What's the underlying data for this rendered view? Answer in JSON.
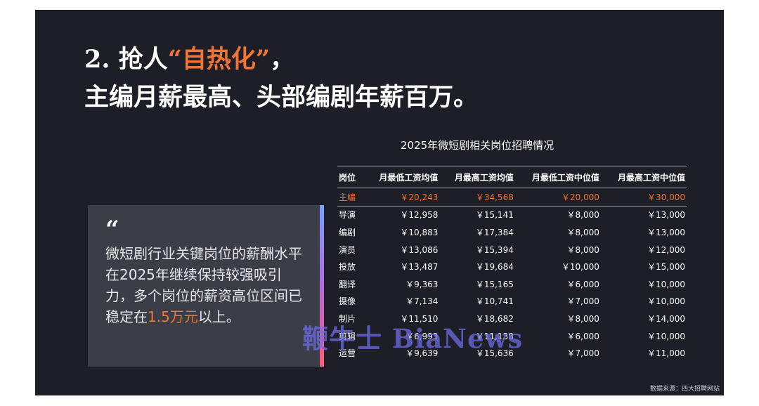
{
  "headline": {
    "line1_prefix": "2. 抢人",
    "line1_accent": "“自热化”",
    "line1_suffix": "，",
    "line2": "主编月薪最高、头部编剧年薪百万。"
  },
  "quote": {
    "mark": "“",
    "text_before": "微短剧行业关键岗位的薪酬水平在2025年继续保持较强吸引力，多个岗位的薪资高位区间已稳定在",
    "highlight": "1.5万元",
    "text_after": "以上。"
  },
  "table": {
    "title": "2025年微短剧相关岗位招聘情况",
    "headers": [
      "岗位",
      "月最低工资均值",
      "月最高工资均值",
      "月最低工资中位值",
      "月最高工资中位值"
    ],
    "rows": [
      [
        "主编",
        "￥20,243",
        "￥34,568",
        "￥20,000",
        "￥30,000"
      ],
      [
        "导演",
        "￥12,958",
        "￥15,141",
        "￥8,000",
        "￥13,000"
      ],
      [
        "编剧",
        "￥10,883",
        "￥17,384",
        "￥8,000",
        "￥13,000"
      ],
      [
        "演员",
        "￥13,086",
        "￥15,394",
        "￥8,000",
        "￥12,000"
      ],
      [
        "投放",
        "￥13,487",
        "￥19,684",
        "￥10,000",
        "￥15,000"
      ],
      [
        "翻译",
        "￥9,363",
        "￥15,165",
        "￥6,000",
        "￥10,000"
      ],
      [
        "摄像",
        "￥7,134",
        "￥10,741",
        "￥7,000",
        "￥10,000"
      ],
      [
        "制片",
        "￥11,510",
        "￥18,682",
        "￥8,000",
        "￥14,000"
      ],
      [
        "剪辑",
        "￥6,993",
        "￥11,138",
        "￥6,000",
        "￥10,000"
      ],
      [
        "运营",
        "￥9,639",
        "￥15,636",
        "￥7,000",
        "￥11,000"
      ]
    ],
    "highlight_color": "#f07436"
  },
  "source": "数据来源：四大招聘网站",
  "watermark": "鞭牛士 BiaNews",
  "colors": {
    "background": "#1d1e26",
    "accent": "#f07436",
    "quote_box": "#3b3d47"
  }
}
